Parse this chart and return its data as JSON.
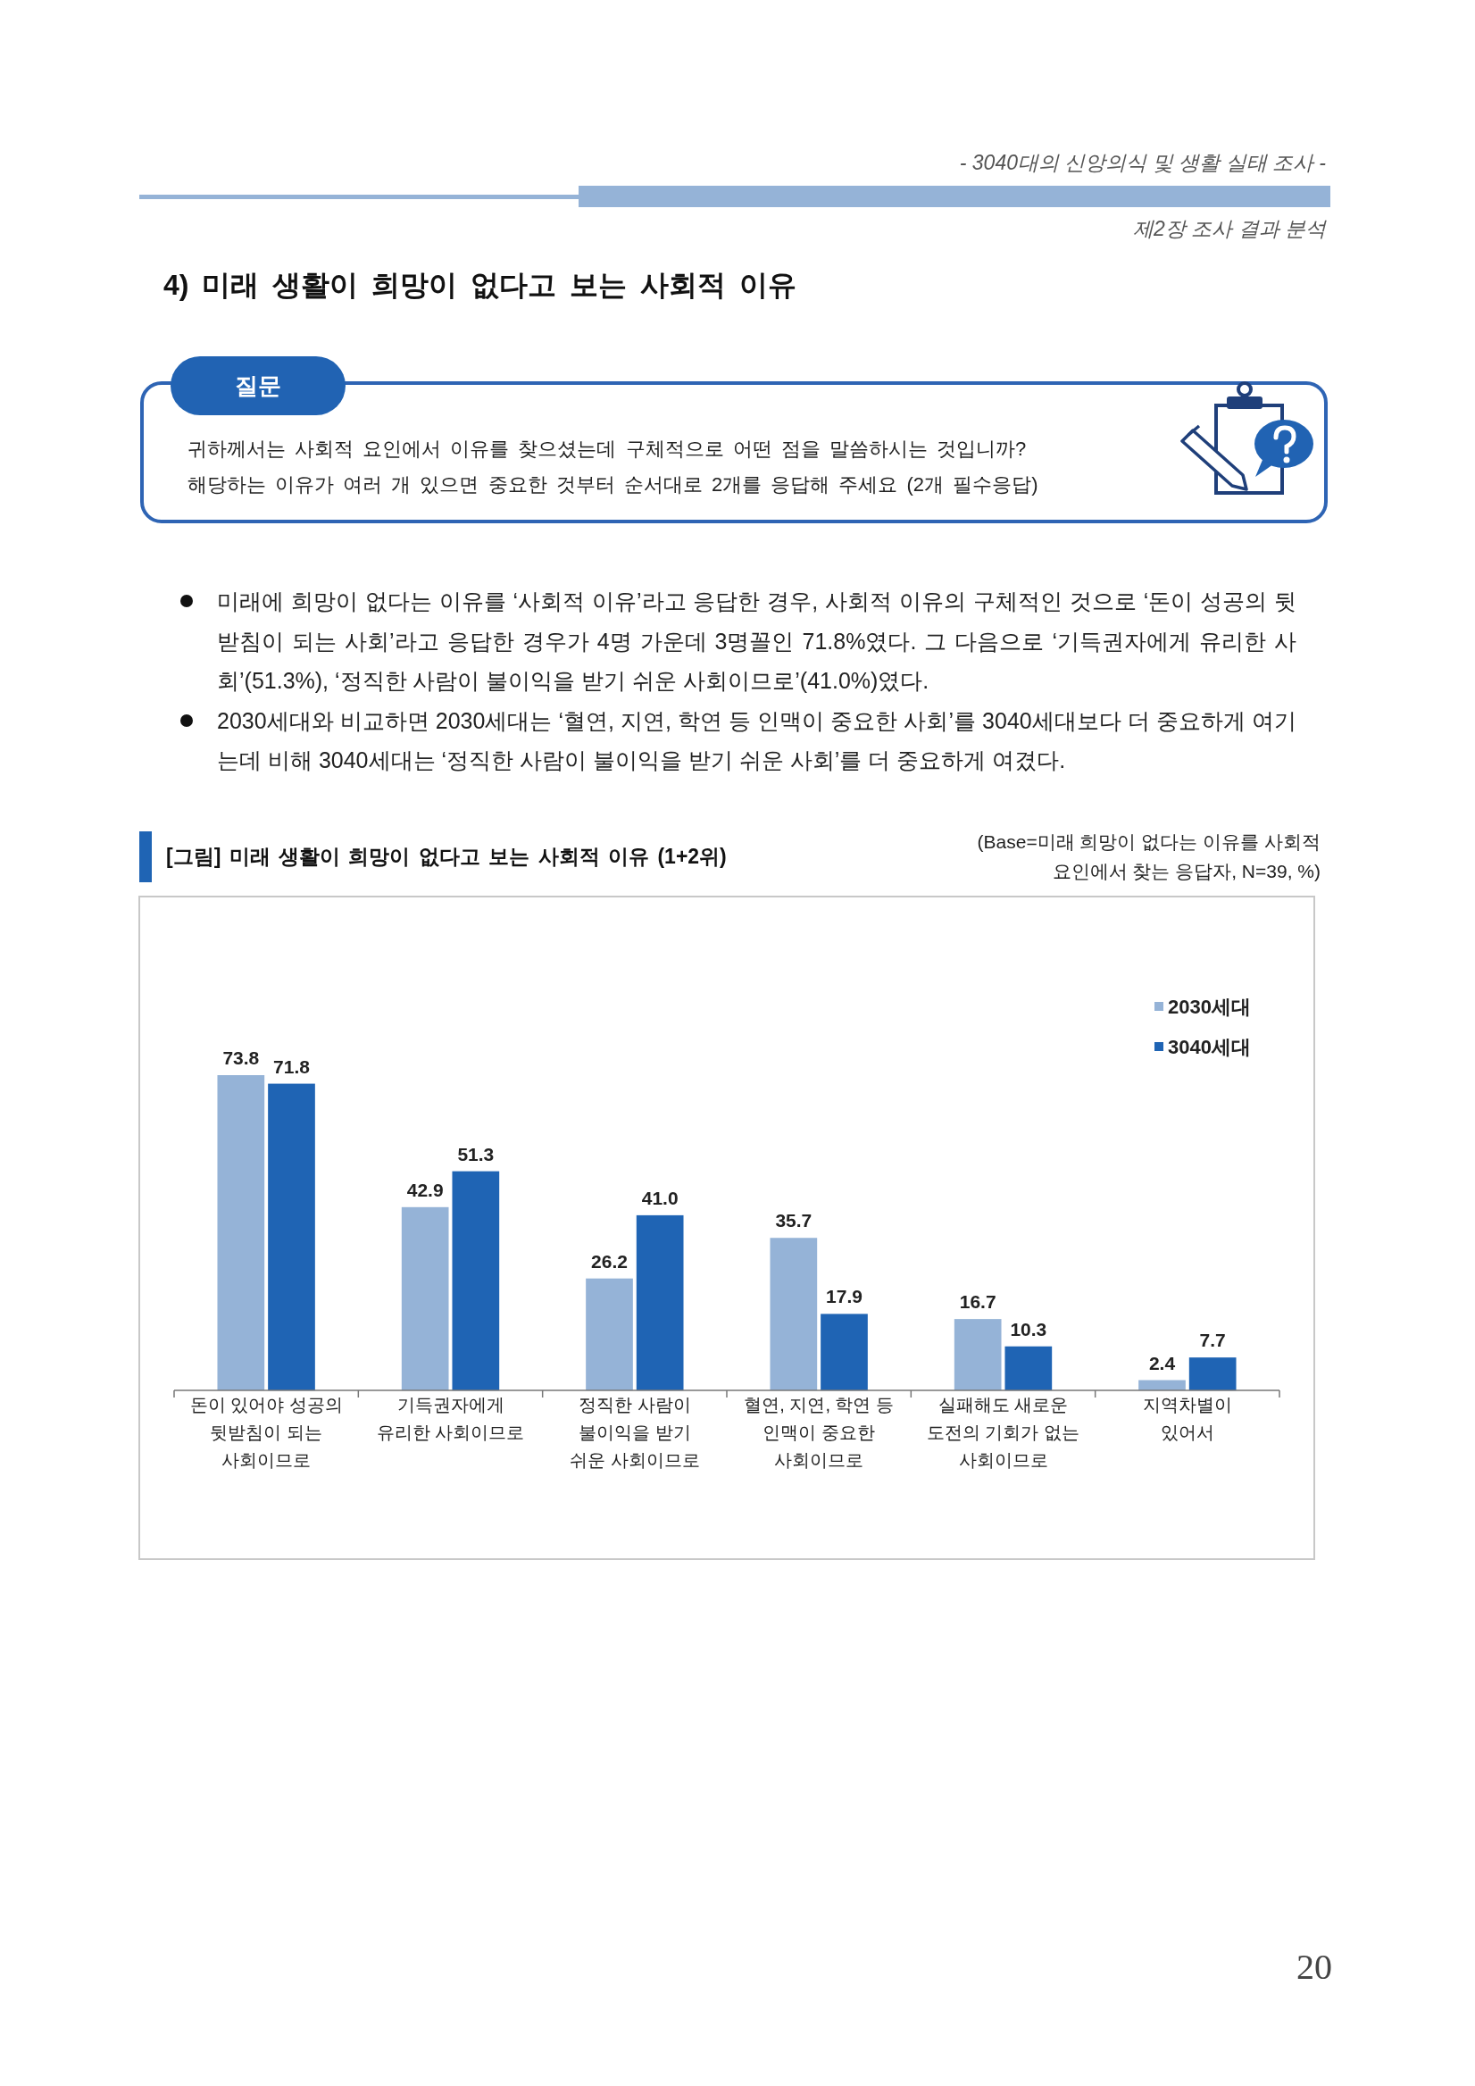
{
  "chart_data": {
    "type": "bar",
    "title": "[그림] 미래 생활이 희망이 없다고 보는 사회적 이유 (1+2위)",
    "categories": [
      "돈이 있어야 성공의\n뒷받침이 되는\n사회이므로",
      "기득권자에게\n유리한 사회이므로",
      "정직한 사람이\n불이익을 받기\n쉬운 사회이므로",
      "혈연, 지연, 학연 등\n인맥이 중요한\n사회이므로",
      "실패해도 새로운\n도전의 기회가 없는\n사회이므로",
      "지역차별이\n있어서"
    ],
    "series": [
      {
        "name": "2030세대",
        "color": "#95b3d7",
        "values": [
          73.8,
          42.9,
          26.2,
          35.7,
          16.7,
          2.4
        ],
        "value_labels": [
          "73.8",
          "42.9",
          "26.2",
          "35.7",
          "16.7",
          "2.4"
        ]
      },
      {
        "name": "3040세대",
        "color": "#1f64b4",
        "values": [
          71.8,
          51.3,
          41.0,
          17.9,
          10.3,
          7.7
        ],
        "value_labels": [
          "71.8",
          "51.3",
          "41.0",
          "17.9",
          "10.3",
          "7.7"
        ]
      }
    ],
    "tick_labels": "x",
    "legend": "top right",
    "annotations": [
      "- 3040대의 신앙의식 및 생활 실태 조사 -",
      "제2장 조사 결과 분석",
      "4) 미래 생활이 희망이 없다고 보는 사회적 이유",
      "질문",
      "귀하께서는 사회적 요인에서 이유를 찾으셨는데 구체적으로 어떤 점을 말씀하시는 것입니까?",
      "해당하는 이유가 여러 개 있으면 중요한 것부터 순서대로 2개를 응답해 주세요 (2개 필수응답)",
      "미래에 희망이 없다는 이유를 ‘사회적 이유’라고 응답한 경우, 사회적 이유의 구체적인 것으로 ‘돈이 성공의 뒷받침이 되는 사회’라고 응답한 경우가 4명 가운데 3명꼴인 71.8%였다. 그 다음으로 ‘기득권자에게 유리한 사회’(51.3%), ‘정직한 사람이 불이익을 받기 쉬운 사회이므로’(41.0%)였다.",
      "2030세대와 비교하면 2030세대는 ‘혈연, 지연, 학연 등 인맥이 중요한 사회’를 3040세대보다 더 중요하게 여기는데 비해 3040세대는 ‘정직한 사람이 불이익을 받기 쉬운 사회’를 더 중요하게 여겼다.",
      "(Base=미래 희망이 없다는 이유를 사회적 요인에서 찾는 응답자, N=39, %)",
      "20"
    ]
  }
}
